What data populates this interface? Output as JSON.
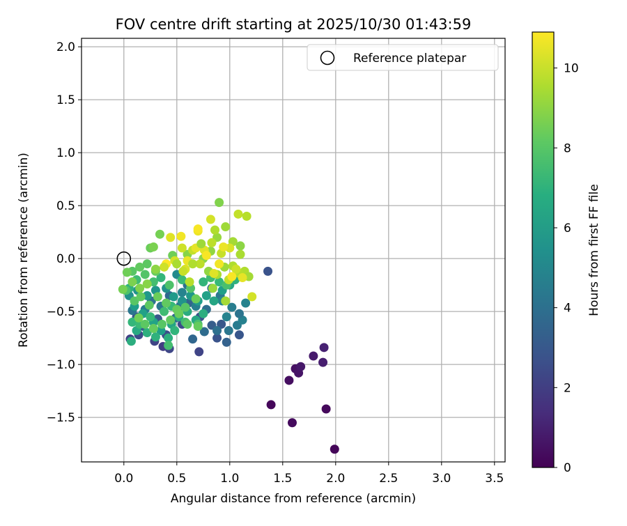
{
  "chart_data": {
    "type": "scatter",
    "title": "FOV centre drift starting at 2025/10/30 01:43:59",
    "xlabel": "Angular distance from reference (arcmin)",
    "ylabel": "Rotation from reference (arcmin)",
    "xlim": [
      -0.4,
      3.6
    ],
    "ylim": [
      -1.92,
      2.08
    ],
    "xticks": [
      0.0,
      0.5,
      1.0,
      1.5,
      2.0,
      2.5,
      3.0,
      3.5
    ],
    "xtick_labels": [
      "0.0",
      "0.5",
      "1.0",
      "1.5",
      "2.0",
      "2.5",
      "3.0",
      "3.5"
    ],
    "yticks": [
      -1.5,
      -1.0,
      -0.5,
      0.0,
      0.5,
      1.0,
      1.5,
      2.0
    ],
    "ytick_labels": [
      "−1.5",
      "−1.0",
      "−0.5",
      "0.0",
      "0.5",
      "1.0",
      "1.5",
      "2.0"
    ],
    "grid": true,
    "legend": {
      "label": "Reference platepar",
      "location": "top-right"
    },
    "reference_point": {
      "x": 0.0,
      "y": 0.0
    },
    "colorbar": {
      "label": "Hours from first FF file",
      "range": [
        0,
        10.9
      ],
      "ticks": [
        0,
        2,
        4,
        6,
        8,
        10
      ],
      "tick_labels": [
        "0",
        "2",
        "4",
        "6",
        "8",
        "10"
      ],
      "colormap": "viridis"
    },
    "points": [
      [
        1.39,
        -1.38,
        0.2
      ],
      [
        1.59,
        -1.55,
        0.3
      ],
      [
        1.56,
        -1.15,
        0.4
      ],
      [
        1.62,
        -1.04,
        0.5
      ],
      [
        1.65,
        -1.08,
        0.6
      ],
      [
        1.67,
        -1.02,
        0.7
      ],
      [
        1.79,
        -0.92,
        0.8
      ],
      [
        1.88,
        -0.98,
        0.9
      ],
      [
        1.89,
        -0.84,
        1.0
      ],
      [
        1.91,
        -1.42,
        0.25
      ],
      [
        1.99,
        -1.8,
        0.15
      ],
      [
        1.36,
        -0.12,
        2.8
      ],
      [
        0.06,
        -0.76,
        2.1
      ],
      [
        0.14,
        -0.72,
        2.5
      ],
      [
        0.29,
        -0.78,
        2.2
      ],
      [
        0.37,
        -0.83,
        2.0
      ],
      [
        0.43,
        -0.85,
        2.3
      ],
      [
        0.4,
        -0.72,
        2.6
      ],
      [
        0.71,
        -0.88,
        2.2
      ],
      [
        0.88,
        -0.75,
        2.8
      ],
      [
        0.92,
        -0.62,
        3.0
      ],
      [
        0.97,
        -0.79,
        3.4
      ],
      [
        1.09,
        -0.72,
        2.9
      ],
      [
        0.65,
        -0.76,
        3.6
      ],
      [
        0.76,
        -0.69,
        3.8
      ],
      [
        0.55,
        -0.62,
        2.5
      ],
      [
        0.72,
        -0.55,
        2.7
      ],
      [
        0.83,
        -0.63,
        3.2
      ],
      [
        0.61,
        -0.42,
        3.5
      ],
      [
        0.32,
        -0.57,
        3.0
      ],
      [
        0.18,
        -0.64,
        3.3
      ],
      [
        0.12,
        -0.55,
        2.9
      ],
      [
        0.49,
        -0.56,
        3.6
      ],
      [
        0.78,
        -0.48,
        3.9
      ],
      [
        0.88,
        -0.68,
        4.0
      ],
      [
        0.99,
        -0.68,
        4.3
      ],
      [
        1.07,
        -0.63,
        4.5
      ],
      [
        1.12,
        -0.58,
        4.8
      ],
      [
        1.09,
        -0.52,
        4.2
      ],
      [
        1.02,
        -0.46,
        4.6
      ],
      [
        1.15,
        -0.42,
        4.9
      ],
      [
        0.91,
        -0.35,
        4.4
      ],
      [
        0.83,
        -0.28,
        3.8
      ],
      [
        0.6,
        -0.25,
        4.0
      ],
      [
        0.43,
        -0.35,
        3.7
      ],
      [
        0.26,
        -0.4,
        4.1
      ],
      [
        0.08,
        -0.49,
        4.3
      ],
      [
        0.2,
        -0.48,
        4.6
      ],
      [
        0.35,
        -0.45,
        4.4
      ],
      [
        0.53,
        -0.45,
        4.2
      ],
      [
        0.68,
        -0.45,
        4.7
      ],
      [
        0.97,
        -0.55,
        4.9
      ],
      [
        0.93,
        -0.4,
        5.1
      ],
      [
        0.55,
        -0.32,
        4.9
      ],
      [
        0.5,
        -0.15,
        5.2
      ],
      [
        0.05,
        -0.35,
        5.5
      ],
      [
        0.13,
        -0.3,
        5.6
      ],
      [
        0.22,
        -0.35,
        5.8
      ],
      [
        0.3,
        -0.3,
        5.7
      ],
      [
        0.4,
        -0.28,
        5.5
      ],
      [
        0.47,
        -0.36,
        5.9
      ],
      [
        0.55,
        -0.4,
        5.6
      ],
      [
        0.63,
        -0.35,
        5.8
      ],
      [
        0.7,
        -0.4,
        6.0
      ],
      [
        0.78,
        -0.35,
        6.2
      ],
      [
        0.85,
        -0.4,
        6.4
      ],
      [
        0.93,
        -0.3,
        6.1
      ],
      [
        1.0,
        -0.25,
        6.5
      ],
      [
        0.1,
        -0.45,
        6.0
      ],
      [
        0.18,
        -0.52,
        6.2
      ],
      [
        0.28,
        -0.6,
        6.3
      ],
      [
        0.35,
        -0.68,
        6.1
      ],
      [
        0.45,
        -0.62,
        6.4
      ],
      [
        0.52,
        -0.55,
        6.6
      ],
      [
        0.6,
        -0.5,
        6.7
      ],
      [
        0.68,
        -0.58,
        6.5
      ],
      [
        0.75,
        -0.52,
        6.8
      ],
      [
        0.12,
        -0.68,
        6.6
      ],
      [
        0.22,
        -0.7,
        6.9
      ],
      [
        0.3,
        -0.74,
        7.0
      ],
      [
        0.42,
        -0.75,
        6.9
      ],
      [
        0.48,
        -0.68,
        7.1
      ],
      [
        0.08,
        -0.6,
        7.2
      ],
      [
        0.15,
        -0.62,
        7.4
      ],
      [
        0.25,
        -0.55,
        7.3
      ],
      [
        0.38,
        -0.5,
        7.5
      ],
      [
        0.45,
        -0.45,
        7.3
      ],
      [
        0.58,
        -0.6,
        7.6
      ],
      [
        0.7,
        -0.62,
        7.7
      ],
      [
        0.05,
        -0.28,
        7.0
      ],
      [
        0.02,
        -0.3,
        7.8
      ],
      [
        0.12,
        -0.2,
        7.5
      ],
      [
        0.2,
        -0.15,
        7.9
      ],
      [
        0.28,
        -0.22,
        7.6
      ],
      [
        0.35,
        -0.18,
        7.2
      ],
      [
        0.43,
        -0.25,
        7.8
      ],
      [
        0.55,
        -0.2,
        7.4
      ],
      [
        0.63,
        -0.28,
        7.9
      ],
      [
        0.75,
        -0.22,
        7.1
      ],
      [
        0.82,
        -0.18,
        7.5
      ],
      [
        0.9,
        -0.22,
        7.3
      ],
      [
        0.97,
        -0.25,
        7.7
      ],
      [
        1.05,
        -0.2,
        7.0
      ],
      [
        0.08,
        -0.12,
        8.0
      ],
      [
        0.15,
        -0.08,
        8.2
      ],
      [
        0.22,
        -0.05,
        8.1
      ],
      [
        0.3,
        -0.12,
        8.3
      ],
      [
        0.1,
        -0.4,
        8.0
      ],
      [
        0.16,
        -0.36,
        8.2
      ],
      [
        0.24,
        -0.44,
        8.1
      ],
      [
        0.32,
        -0.36,
        8.4
      ],
      [
        0.4,
        -0.42,
        8.2
      ],
      [
        0.5,
        -0.48,
        8.3
      ],
      [
        0.58,
        -0.46,
        8.0
      ],
      [
        0.68,
        -0.38,
        8.4
      ],
      [
        0.2,
        -0.62,
        8.1
      ],
      [
        0.28,
        -0.66,
        8.3
      ],
      [
        0.36,
        -0.62,
        8.0
      ],
      [
        0.44,
        -0.58,
        8.2
      ],
      [
        0.52,
        -0.52,
        8.4
      ],
      [
        0.6,
        -0.62,
        8.1
      ],
      [
        0.7,
        -0.64,
        8.3
      ],
      [
        0.14,
        -0.56,
        8.5
      ],
      [
        0.42,
        -0.82,
        7.6
      ],
      [
        0.07,
        -0.78,
        6.8
      ],
      [
        0.34,
        0.23,
        8.6
      ],
      [
        0.25,
        0.1,
        8.4
      ],
      [
        0.28,
        0.11,
        8.7
      ],
      [
        0.46,
        0.03,
        8.5
      ],
      [
        0.6,
        0.04,
        8.9
      ],
      [
        0.75,
        0.0,
        9.0
      ],
      [
        0.82,
        0.07,
        9.1
      ],
      [
        0.88,
        0.2,
        9.2
      ],
      [
        0.9,
        0.53,
        8.8
      ],
      [
        0.96,
        0.3,
        9.3
      ],
      [
        1.03,
        0.16,
        9.4
      ],
      [
        1.1,
        0.12,
        9.0
      ],
      [
        1.1,
        0.04,
        9.5
      ],
      [
        1.14,
        -0.12,
        9.6
      ],
      [
        1.18,
        -0.17,
        9.4
      ],
      [
        1.09,
        -0.14,
        9.7
      ],
      [
        1.03,
        -0.07,
        9.6
      ],
      [
        0.95,
        -0.08,
        9.3
      ],
      [
        0.88,
        -0.15,
        9.5
      ],
      [
        0.8,
        -0.12,
        9.1
      ],
      [
        0.72,
        -0.05,
        9.8
      ],
      [
        0.65,
        0.08,
        9.9
      ],
      [
        0.55,
        0.1,
        10.1
      ],
      [
        0.48,
        -0.02,
        10.2
      ],
      [
        0.58,
        -0.1,
        10.3
      ],
      [
        0.68,
        0.1,
        10.5
      ],
      [
        0.76,
        0.08,
        10.4
      ],
      [
        0.83,
        0.15,
        9.8
      ],
      [
        0.7,
        0.26,
        10.6
      ],
      [
        0.7,
        0.28,
        10.8
      ],
      [
        0.54,
        0.21,
        10.7
      ],
      [
        0.44,
        0.2,
        10.4
      ],
      [
        0.4,
        -0.05,
        10.9
      ],
      [
        0.6,
        -0.02,
        10.6
      ],
      [
        0.82,
        0.37,
        10.2
      ],
      [
        0.86,
        0.27,
        9.6
      ],
      [
        1.08,
        0.42,
        9.9
      ],
      [
        1.16,
        0.4,
        9.7
      ],
      [
        0.92,
        0.05,
        10.0
      ],
      [
        1.0,
        0.1,
        10.3
      ],
      [
        1.06,
        -0.1,
        10.1
      ],
      [
        1.12,
        -0.18,
        10.5
      ],
      [
        0.99,
        -0.2,
        9.9
      ],
      [
        0.9,
        -0.05,
        10.7
      ],
      [
        0.78,
        0.03,
        10.8
      ],
      [
        1.21,
        -0.36,
        10.2
      ],
      [
        0.96,
        -0.4,
        9.4
      ],
      [
        0.84,
        -0.28,
        9.2
      ],
      [
        0.65,
        -0.05,
        9.6
      ],
      [
        0.56,
        -0.12,
        10.0
      ],
      [
        0.73,
        0.14,
        9.3
      ],
      [
        0.85,
        -0.14,
        10.4
      ],
      [
        0.94,
        0.11,
        10.6
      ],
      [
        1.02,
        -0.17,
        10.8
      ],
      [
        0.62,
        -0.22,
        9.7
      ],
      [
        0.5,
        -0.05,
        9.5
      ],
      [
        0.38,
        -0.08,
        10.1
      ],
      [
        0.3,
        -0.1,
        9.0
      ],
      [
        0.22,
        -0.24,
        8.9
      ],
      [
        0.15,
        -0.28,
        8.8
      ],
      [
        0.08,
        -0.22,
        8.7
      ],
      [
        -0.01,
        -0.29,
        8.6
      ],
      [
        0.03,
        -0.13,
        8.5
      ]
    ]
  }
}
